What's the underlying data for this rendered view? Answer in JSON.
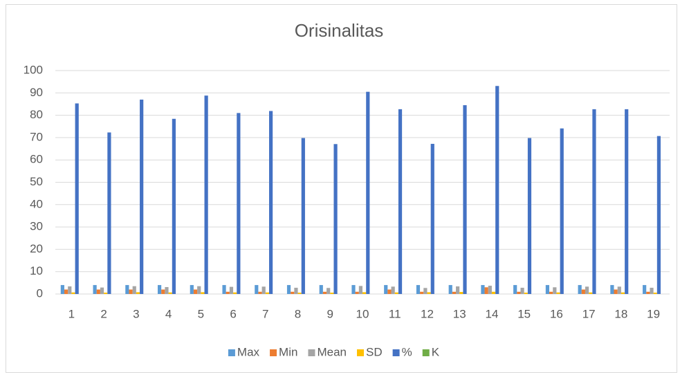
{
  "chart_data": {
    "type": "bar",
    "title": "Orisinalitas",
    "categories": [
      "1",
      "2",
      "3",
      "4",
      "5",
      "6",
      "7",
      "8",
      "9",
      "10",
      "11",
      "12",
      "13",
      "14",
      "15",
      "16",
      "17",
      "18",
      "19"
    ],
    "series": [
      {
        "name": "Max",
        "color": "#5b9bd5",
        "values": [
          4,
          4,
          4,
          4,
          4,
          4,
          4,
          4,
          4,
          4,
          4,
          4,
          4,
          4,
          4,
          4,
          4,
          4,
          4
        ]
      },
      {
        "name": "Min",
        "color": "#ed7d31",
        "values": [
          2,
          2,
          2,
          2,
          2,
          1,
          1,
          1,
          1,
          1,
          2,
          1,
          1,
          3,
          1,
          1,
          2,
          2,
          1
        ]
      },
      {
        "name": "Mean",
        "color": "#a5a5a5",
        "values": [
          3.4,
          2.9,
          3.5,
          3.1,
          3.5,
          3.2,
          3.3,
          2.8,
          2.7,
          3.6,
          3.3,
          2.7,
          3.4,
          3.7,
          2.8,
          3.0,
          3.3,
          3.3,
          2.8
        ]
      },
      {
        "name": "SD",
        "color": "#ffc000",
        "values": [
          0.7,
          0.6,
          0.8,
          0.7,
          0.8,
          0.7,
          0.7,
          0.6,
          0.6,
          0.8,
          0.7,
          0.8,
          0.9,
          1.0,
          0.6,
          0.7,
          0.7,
          0.7,
          0.6
        ]
      },
      {
        "name": "%",
        "color": "#4472c4",
        "values": [
          85.3,
          72.3,
          87.0,
          78.4,
          88.8,
          81.0,
          81.9,
          69.8,
          67.1,
          90.5,
          82.7,
          67.2,
          84.5,
          93.1,
          69.8,
          74.1,
          82.7,
          82.7,
          70.7
        ]
      },
      {
        "name": "K",
        "color": "#70ad47",
        "values": [
          0,
          0,
          0,
          0,
          0,
          0,
          0,
          0,
          0,
          0,
          0,
          0,
          0,
          0,
          0,
          0,
          0,
          0,
          0
        ]
      }
    ],
    "ylim": [
      0,
      100
    ],
    "yticks": [
      0,
      10,
      20,
      30,
      40,
      50,
      60,
      70,
      80,
      90,
      100
    ],
    "grid": true,
    "legend": "bottom"
  }
}
